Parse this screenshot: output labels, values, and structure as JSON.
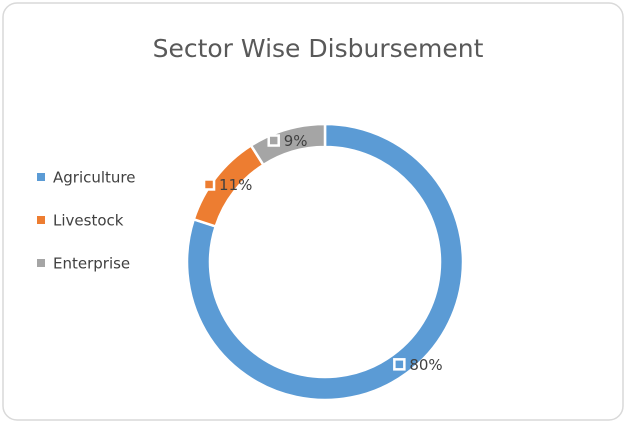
{
  "chart_data": {
    "type": "donut",
    "title": "Sector Wise Disbursement",
    "categories": [
      "Agriculture",
      "Livestock",
      "Enterprise"
    ],
    "values": [
      80,
      11,
      9
    ],
    "value_labels": [
      "80%",
      "11%",
      "9%"
    ],
    "colors": [
      "#5b9bd5",
      "#ed7d31",
      "#a5a5a5"
    ],
    "legend": "left"
  }
}
